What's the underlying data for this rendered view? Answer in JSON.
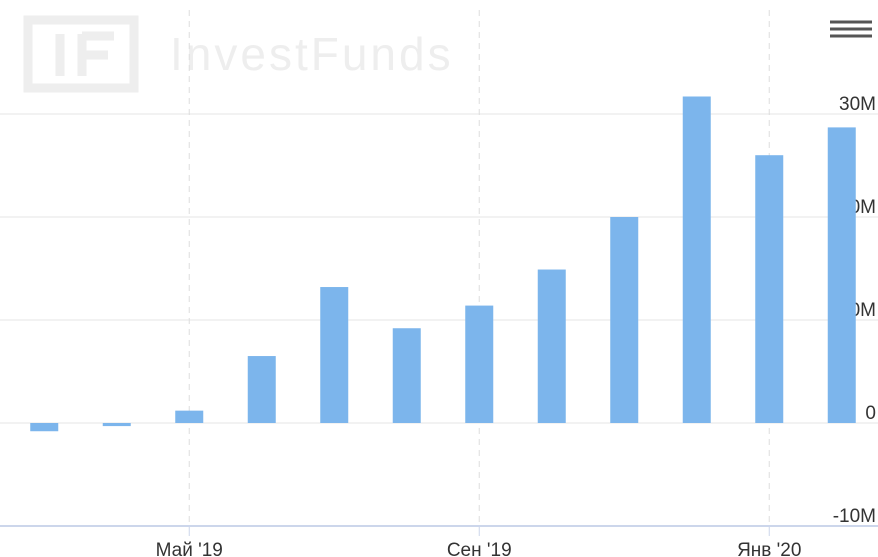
{
  "chart_data": {
    "type": "bar",
    "watermark": "InvestFunds",
    "categories": [
      null,
      null,
      "Май '19",
      null,
      null,
      null,
      "Сен '19",
      null,
      null,
      null,
      "Янв '20",
      null
    ],
    "values": [
      -800000,
      -300000,
      1200000,
      6500000,
      13200000,
      9200000,
      11400000,
      14900000,
      20000000,
      31700000,
      26000000,
      28700000
    ],
    "color": "#7cb5ec",
    "ylim": [
      -10000000,
      40000000
    ],
    "yticks": [
      {
        "value": -10000000,
        "label": "-10M"
      },
      0,
      {
        "value": 10000000,
        "label": "10M"
      },
      {
        "value": 20000000,
        "label": "20M"
      },
      {
        "value": 30000000,
        "label": "30M"
      }
    ],
    "grid": true
  }
}
